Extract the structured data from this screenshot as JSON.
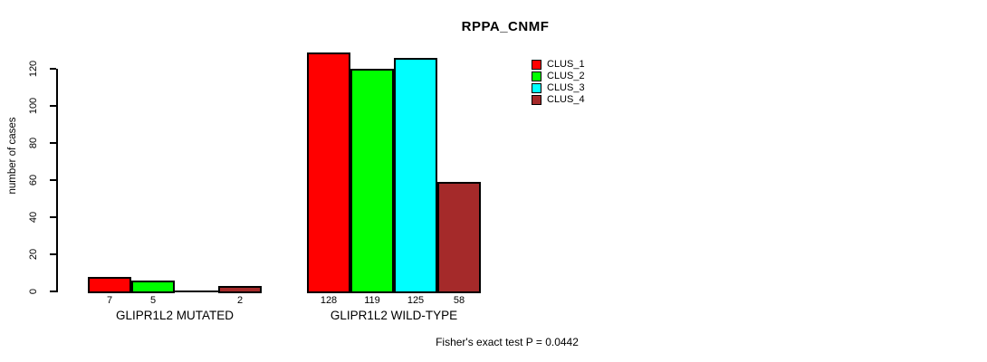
{
  "title": "RPPA_CNMF",
  "footer": "Fisher's exact test P = 0.0442",
  "y_axis": {
    "label": "number of cases",
    "tick_labels": [
      "0",
      "20",
      "40",
      "60",
      "80",
      "100",
      "120"
    ]
  },
  "x_axis": {
    "group_labels": [
      "GLIPR1L2 MUTATED",
      "GLIPR1L2 WILD-TYPE"
    ]
  },
  "legend": {
    "items": [
      {
        "label": "CLUS_1",
        "color": "#ff0000"
      },
      {
        "label": "CLUS_2",
        "color": "#00ff00"
      },
      {
        "label": "CLUS_3",
        "color": "#00ffff"
      },
      {
        "label": "CLUS_4",
        "color": "#a52a2a"
      }
    ]
  },
  "chart_data": {
    "type": "bar",
    "title": "RPPA_CNMF",
    "xlabel": "",
    "ylabel": "number of cases",
    "categories": [
      "GLIPR1L2 MUTATED",
      "GLIPR1L2 WILD-TYPE"
    ],
    "series": [
      {
        "name": "CLUS_1",
        "color": "#ff0000",
        "values": [
          7,
          128
        ]
      },
      {
        "name": "CLUS_2",
        "color": "#00ff00",
        "values": [
          5,
          119
        ]
      },
      {
        "name": "CLUS_3",
        "color": "#00ffff",
        "values": [
          0,
          125
        ]
      },
      {
        "name": "CLUS_4",
        "color": "#a52a2a",
        "values": [
          2,
          58
        ]
      }
    ],
    "bar_value_labels": [
      [
        "7",
        "5",
        "",
        "2"
      ],
      [
        "128",
        "119",
        "125",
        "58"
      ]
    ],
    "ylim": [
      0,
      120
    ],
    "yticks": [
      0,
      20,
      40,
      60,
      80,
      100,
      120
    ],
    "grid": false,
    "legend_position": "top-right",
    "annotation": "Fisher's exact test P = 0.0442"
  }
}
